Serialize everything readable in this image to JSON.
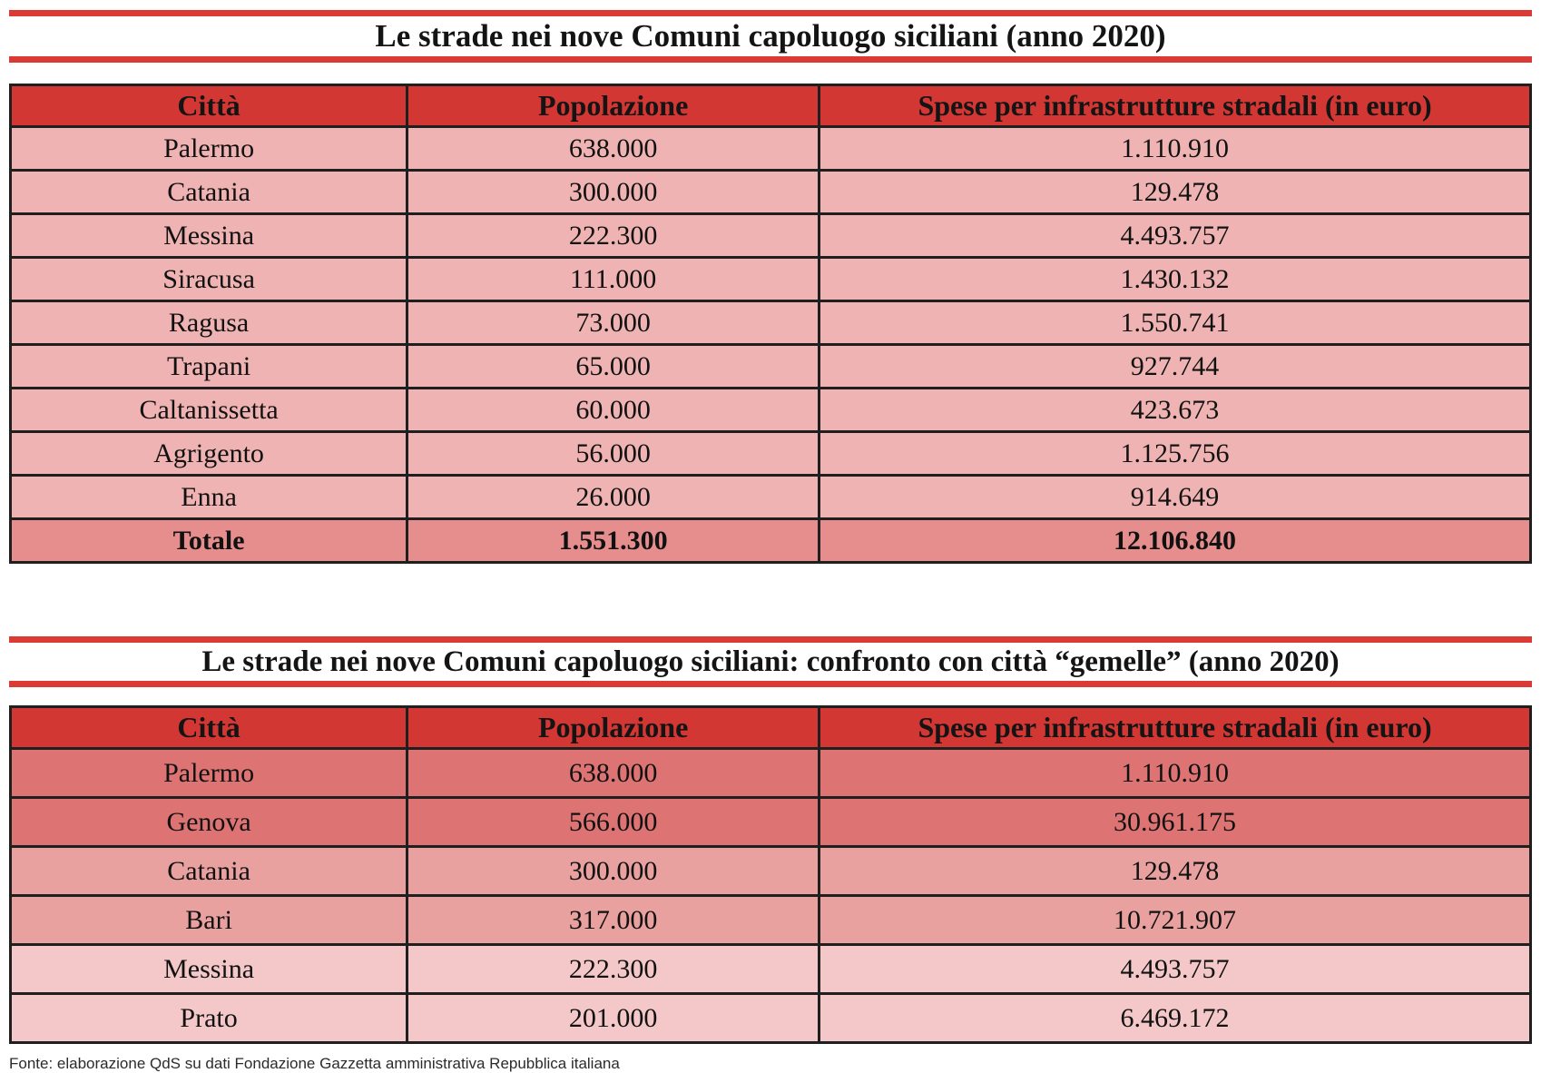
{
  "page": {
    "source_note": "Fonte: elaborazione QdS su dati Fondazione Gazzetta amministrativa Repubblica italiana"
  },
  "colors": {
    "header_red": "#d23733",
    "rule_red": "#dc3a35",
    "table1_row_pink": "#efb3b3",
    "table1_total_salmon": "#e68d8d",
    "table2_pair1_salmon": "#dd7473",
    "table2_pair2_pink": "#e9a1a0",
    "table2_pair3_light_pink": "#f4c8c8",
    "border_black": "#1f1f1f"
  },
  "chart_data": [
    {
      "type": "table",
      "title": "Le strade nei nove Comuni capoluogo siciliani (anno 2020)",
      "columns": [
        "Città",
        "Popolazione",
        "Spese per infrastrutture stradali (in euro)"
      ],
      "rows": [
        [
          "Palermo",
          "638.000",
          "1.110.910"
        ],
        [
          "Catania",
          "300.000",
          "129.478"
        ],
        [
          "Messina",
          "222.300",
          "4.493.757"
        ],
        [
          "Siracusa",
          "111.000",
          "1.430.132"
        ],
        [
          "Ragusa",
          "73.000",
          "1.550.741"
        ],
        [
          "Trapani",
          "65.000",
          "927.744"
        ],
        [
          "Caltanissetta",
          "60.000",
          "423.673"
        ],
        [
          "Agrigento",
          "56.000",
          "1.125.756"
        ],
        [
          "Enna",
          "26.000",
          "914.649"
        ]
      ],
      "total_row": [
        "Totale",
        "1.551.300",
        "12.106.840"
      ]
    },
    {
      "type": "table",
      "title": "Le strade nei nove Comuni capoluogo siciliani: confronto con città “gemelle” (anno 2020)",
      "columns": [
        "Città",
        "Popolazione",
        "Spese per infrastrutture stradali (in euro)"
      ],
      "rows": [
        [
          "Palermo",
          "638.000",
          "1.110.910"
        ],
        [
          "Genova",
          "566.000",
          "30.961.175"
        ],
        [
          "Catania",
          "300.000",
          "129.478"
        ],
        [
          "Bari",
          "317.000",
          "10.721.907"
        ],
        [
          "Messina",
          "222.300",
          "4.493.757"
        ],
        [
          "Prato",
          "201.000",
          "6.469.172"
        ]
      ]
    }
  ]
}
